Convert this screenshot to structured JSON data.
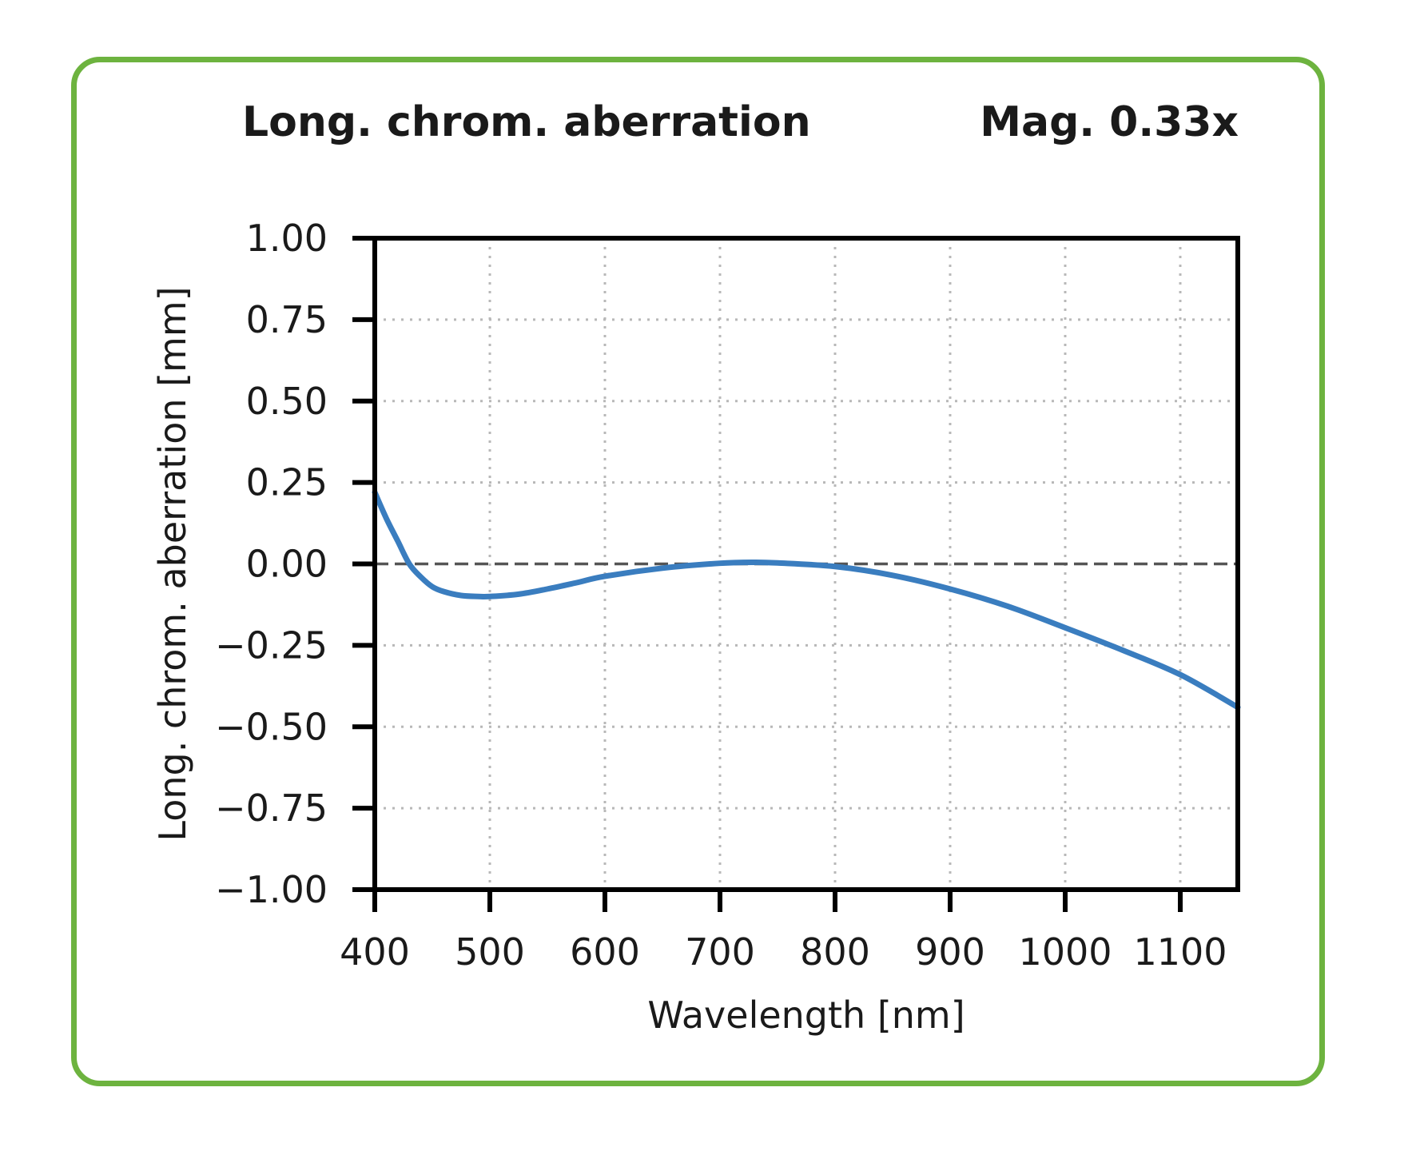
{
  "header": {
    "title": "Long. chrom. aberration",
    "magnification": "Mag. 0.33x"
  },
  "colors": {
    "border": "#6db33f",
    "line": "#3a7dbf",
    "zero_line": "#555555",
    "grid": "#b8b8b8",
    "axis": "#000000"
  },
  "chart_data": {
    "type": "line",
    "title": "Long. chrom. aberration",
    "subtitle": "Mag. 0.33x",
    "xlabel": "Wavelength [nm]",
    "ylabel": "Long. chrom. aberration [mm]",
    "xlim": [
      400,
      1150
    ],
    "ylim": [
      -1.0,
      1.0
    ],
    "grid": true,
    "xticks": [
      400,
      500,
      600,
      700,
      800,
      900,
      1000,
      1100
    ],
    "xtick_labels": [
      "400",
      "500",
      "600",
      "700",
      "800",
      "900",
      "1000",
      "1100"
    ],
    "yticks": [
      1.0,
      0.75,
      0.5,
      0.25,
      0.0,
      -0.25,
      -0.5,
      -0.75,
      -1.0
    ],
    "ytick_labels": [
      "1.00",
      "0.75",
      "0.50",
      "0.25",
      "0.00",
      "−0.25",
      "−0.50",
      "−0.75",
      "−1.00"
    ],
    "reference_line": {
      "y": 0.0,
      "style": "dashed"
    },
    "series": [
      {
        "name": "Long. chrom. aberration",
        "x": [
          400,
          410,
          420,
          430,
          440,
          450,
          460,
          475,
          490,
          500,
          525,
          550,
          575,
          600,
          650,
          700,
          730,
          750,
          800,
          850,
          900,
          950,
          1000,
          1050,
          1100,
          1150
        ],
        "y": [
          0.22,
          0.14,
          0.07,
          0.0,
          -0.04,
          -0.07,
          -0.085,
          -0.097,
          -0.1,
          -0.1,
          -0.093,
          -0.077,
          -0.058,
          -0.038,
          -0.013,
          0.002,
          0.005,
          0.003,
          -0.008,
          -0.035,
          -0.077,
          -0.13,
          -0.196,
          -0.265,
          -0.34,
          -0.44
        ]
      }
    ]
  }
}
